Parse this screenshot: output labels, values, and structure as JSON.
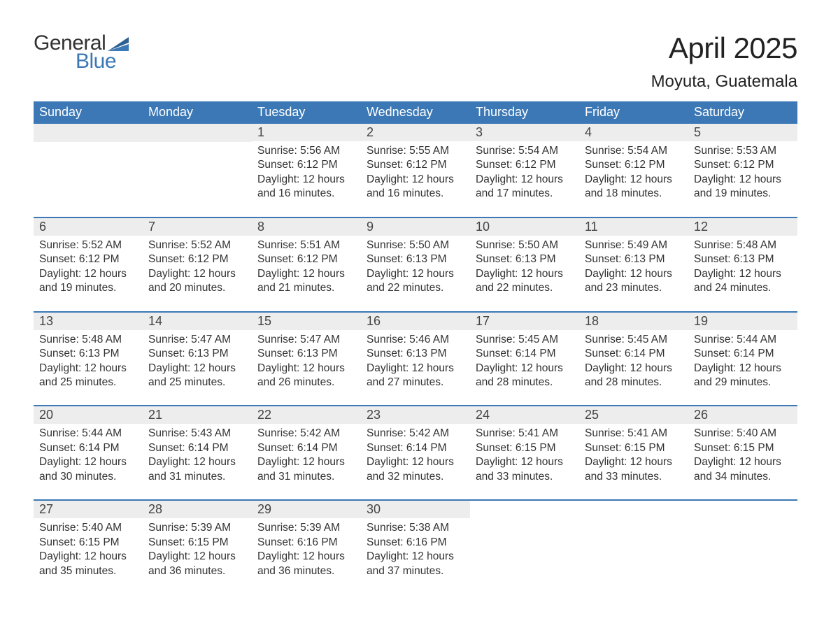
{
  "brand": {
    "general": "General",
    "blue": "Blue",
    "flag_color": "#3b78b5"
  },
  "title": "April 2025",
  "location": "Moyuta, Guatemala",
  "colors": {
    "header_bg": "#3b78b5",
    "header_text": "#ffffff",
    "daynum_bg": "#ededed",
    "week_divider": "#3b78b5",
    "body_text": "#333333",
    "page_bg": "#ffffff"
  },
  "typography": {
    "title_fontsize": 42,
    "location_fontsize": 24,
    "dow_fontsize": 18,
    "daynum_fontsize": 18,
    "body_fontsize": 15.5,
    "logo_fontsize": 30
  },
  "days_of_week": [
    "Sunday",
    "Monday",
    "Tuesday",
    "Wednesday",
    "Thursday",
    "Friday",
    "Saturday"
  ],
  "weeks": [
    [
      null,
      null,
      {
        "n": "1",
        "sunrise": "Sunrise: 5:56 AM",
        "sunset": "Sunset: 6:12 PM",
        "dl1": "Daylight: 12 hours",
        "dl2": "and 16 minutes."
      },
      {
        "n": "2",
        "sunrise": "Sunrise: 5:55 AM",
        "sunset": "Sunset: 6:12 PM",
        "dl1": "Daylight: 12 hours",
        "dl2": "and 16 minutes."
      },
      {
        "n": "3",
        "sunrise": "Sunrise: 5:54 AM",
        "sunset": "Sunset: 6:12 PM",
        "dl1": "Daylight: 12 hours",
        "dl2": "and 17 minutes."
      },
      {
        "n": "4",
        "sunrise": "Sunrise: 5:54 AM",
        "sunset": "Sunset: 6:12 PM",
        "dl1": "Daylight: 12 hours",
        "dl2": "and 18 minutes."
      },
      {
        "n": "5",
        "sunrise": "Sunrise: 5:53 AM",
        "sunset": "Sunset: 6:12 PM",
        "dl1": "Daylight: 12 hours",
        "dl2": "and 19 minutes."
      }
    ],
    [
      {
        "n": "6",
        "sunrise": "Sunrise: 5:52 AM",
        "sunset": "Sunset: 6:12 PM",
        "dl1": "Daylight: 12 hours",
        "dl2": "and 19 minutes."
      },
      {
        "n": "7",
        "sunrise": "Sunrise: 5:52 AM",
        "sunset": "Sunset: 6:12 PM",
        "dl1": "Daylight: 12 hours",
        "dl2": "and 20 minutes."
      },
      {
        "n": "8",
        "sunrise": "Sunrise: 5:51 AM",
        "sunset": "Sunset: 6:12 PM",
        "dl1": "Daylight: 12 hours",
        "dl2": "and 21 minutes."
      },
      {
        "n": "9",
        "sunrise": "Sunrise: 5:50 AM",
        "sunset": "Sunset: 6:13 PM",
        "dl1": "Daylight: 12 hours",
        "dl2": "and 22 minutes."
      },
      {
        "n": "10",
        "sunrise": "Sunrise: 5:50 AM",
        "sunset": "Sunset: 6:13 PM",
        "dl1": "Daylight: 12 hours",
        "dl2": "and 22 minutes."
      },
      {
        "n": "11",
        "sunrise": "Sunrise: 5:49 AM",
        "sunset": "Sunset: 6:13 PM",
        "dl1": "Daylight: 12 hours",
        "dl2": "and 23 minutes."
      },
      {
        "n": "12",
        "sunrise": "Sunrise: 5:48 AM",
        "sunset": "Sunset: 6:13 PM",
        "dl1": "Daylight: 12 hours",
        "dl2": "and 24 minutes."
      }
    ],
    [
      {
        "n": "13",
        "sunrise": "Sunrise: 5:48 AM",
        "sunset": "Sunset: 6:13 PM",
        "dl1": "Daylight: 12 hours",
        "dl2": "and 25 minutes."
      },
      {
        "n": "14",
        "sunrise": "Sunrise: 5:47 AM",
        "sunset": "Sunset: 6:13 PM",
        "dl1": "Daylight: 12 hours",
        "dl2": "and 25 minutes."
      },
      {
        "n": "15",
        "sunrise": "Sunrise: 5:47 AM",
        "sunset": "Sunset: 6:13 PM",
        "dl1": "Daylight: 12 hours",
        "dl2": "and 26 minutes."
      },
      {
        "n": "16",
        "sunrise": "Sunrise: 5:46 AM",
        "sunset": "Sunset: 6:13 PM",
        "dl1": "Daylight: 12 hours",
        "dl2": "and 27 minutes."
      },
      {
        "n": "17",
        "sunrise": "Sunrise: 5:45 AM",
        "sunset": "Sunset: 6:14 PM",
        "dl1": "Daylight: 12 hours",
        "dl2": "and 28 minutes."
      },
      {
        "n": "18",
        "sunrise": "Sunrise: 5:45 AM",
        "sunset": "Sunset: 6:14 PM",
        "dl1": "Daylight: 12 hours",
        "dl2": "and 28 minutes."
      },
      {
        "n": "19",
        "sunrise": "Sunrise: 5:44 AM",
        "sunset": "Sunset: 6:14 PM",
        "dl1": "Daylight: 12 hours",
        "dl2": "and 29 minutes."
      }
    ],
    [
      {
        "n": "20",
        "sunrise": "Sunrise: 5:44 AM",
        "sunset": "Sunset: 6:14 PM",
        "dl1": "Daylight: 12 hours",
        "dl2": "and 30 minutes."
      },
      {
        "n": "21",
        "sunrise": "Sunrise: 5:43 AM",
        "sunset": "Sunset: 6:14 PM",
        "dl1": "Daylight: 12 hours",
        "dl2": "and 31 minutes."
      },
      {
        "n": "22",
        "sunrise": "Sunrise: 5:42 AM",
        "sunset": "Sunset: 6:14 PM",
        "dl1": "Daylight: 12 hours",
        "dl2": "and 31 minutes."
      },
      {
        "n": "23",
        "sunrise": "Sunrise: 5:42 AM",
        "sunset": "Sunset: 6:14 PM",
        "dl1": "Daylight: 12 hours",
        "dl2": "and 32 minutes."
      },
      {
        "n": "24",
        "sunrise": "Sunrise: 5:41 AM",
        "sunset": "Sunset: 6:15 PM",
        "dl1": "Daylight: 12 hours",
        "dl2": "and 33 minutes."
      },
      {
        "n": "25",
        "sunrise": "Sunrise: 5:41 AM",
        "sunset": "Sunset: 6:15 PM",
        "dl1": "Daylight: 12 hours",
        "dl2": "and 33 minutes."
      },
      {
        "n": "26",
        "sunrise": "Sunrise: 5:40 AM",
        "sunset": "Sunset: 6:15 PM",
        "dl1": "Daylight: 12 hours",
        "dl2": "and 34 minutes."
      }
    ],
    [
      {
        "n": "27",
        "sunrise": "Sunrise: 5:40 AM",
        "sunset": "Sunset: 6:15 PM",
        "dl1": "Daylight: 12 hours",
        "dl2": "and 35 minutes."
      },
      {
        "n": "28",
        "sunrise": "Sunrise: 5:39 AM",
        "sunset": "Sunset: 6:15 PM",
        "dl1": "Daylight: 12 hours",
        "dl2": "and 36 minutes."
      },
      {
        "n": "29",
        "sunrise": "Sunrise: 5:39 AM",
        "sunset": "Sunset: 6:16 PM",
        "dl1": "Daylight: 12 hours",
        "dl2": "and 36 minutes."
      },
      {
        "n": "30",
        "sunrise": "Sunrise: 5:38 AM",
        "sunset": "Sunset: 6:16 PM",
        "dl1": "Daylight: 12 hours",
        "dl2": "and 37 minutes."
      },
      null,
      null,
      null
    ]
  ]
}
